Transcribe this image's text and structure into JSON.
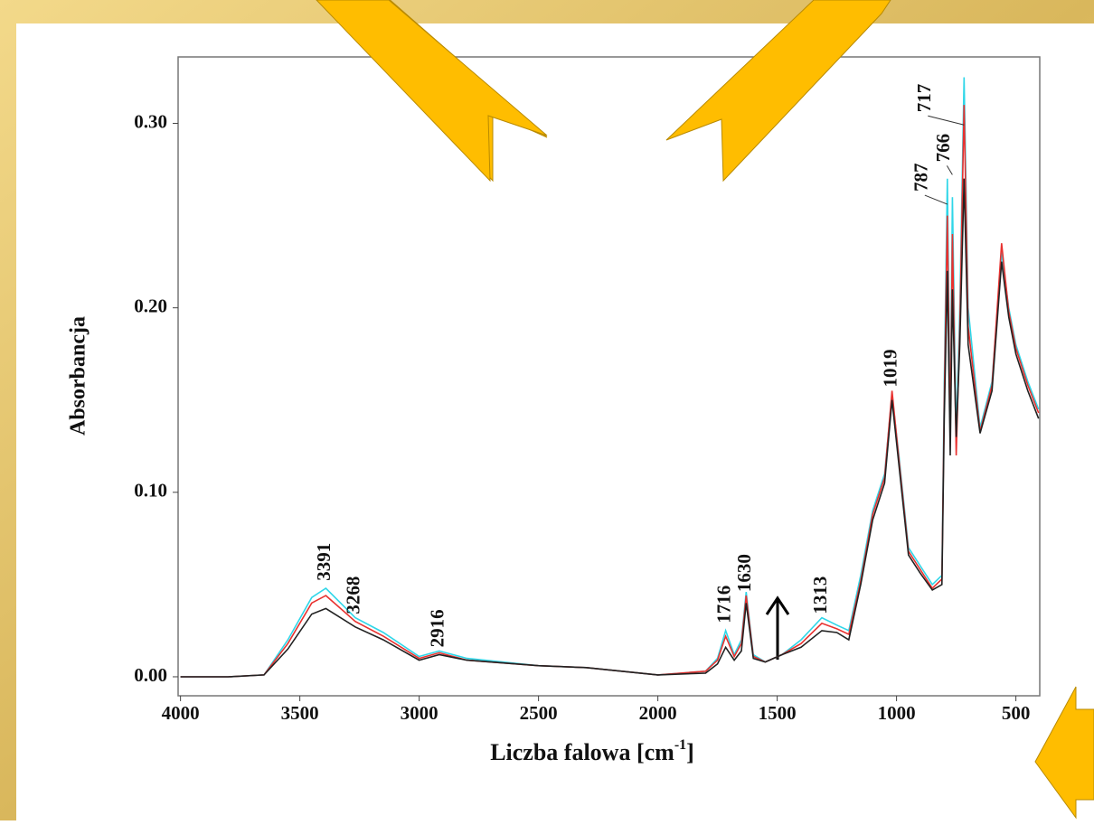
{
  "chart_data": {
    "type": "line",
    "ylabel": "Absorbancja",
    "xlabel_parts": [
      "Liczba falowa [cm",
      "-1",
      "]"
    ],
    "xlim": [
      4010,
      400
    ],
    "xticks": [
      4000,
      3500,
      3000,
      2500,
      2000,
      1500,
      1000,
      500
    ],
    "ylim": [
      -0.0103,
      0.336
    ],
    "yticks": [
      {
        "value": 0,
        "label": "0.00"
      },
      {
        "value": 0.1,
        "label": "0.10"
      },
      {
        "value": 0.2,
        "label": "0.20"
      },
      {
        "value": 0.3,
        "label": "0.30"
      }
    ],
    "x": [
      4000,
      3800,
      3650,
      3550,
      3450,
      3391,
      3268,
      3150,
      3000,
      2916,
      2800,
      2500,
      2300,
      2000,
      1800,
      1750,
      1716,
      1680,
      1650,
      1630,
      1600,
      1550,
      1480,
      1400,
      1313,
      1250,
      1200,
      1150,
      1100,
      1050,
      1019,
      990,
      950,
      900,
      850,
      810,
      800,
      787,
      775,
      766,
      750,
      735,
      717,
      700,
      650,
      600,
      560,
      530,
      500,
      450,
      405
    ],
    "series": [
      {
        "color": "#2fd6e8",
        "values": [
          0,
          0,
          0.001,
          0.02,
          0.043,
          0.048,
          0.032,
          0.024,
          0.011,
          0.014,
          0.01,
          0.006,
          0.005,
          0.001,
          0.003,
          0.01,
          0.025,
          0.012,
          0.02,
          0.046,
          0.012,
          0.008,
          0.012,
          0.02,
          0.032,
          0.028,
          0.025,
          0.055,
          0.09,
          0.11,
          0.153,
          0.12,
          0.07,
          0.06,
          0.05,
          0.055,
          0.16,
          0.27,
          0.14,
          0.26,
          0.13,
          0.2,
          0.325,
          0.2,
          0.135,
          0.16,
          0.23,
          0.2,
          0.18,
          0.16,
          0.145
        ]
      },
      {
        "color": "#e8312f",
        "values": [
          0,
          0,
          0.001,
          0.018,
          0.04,
          0.044,
          0.03,
          0.022,
          0.01,
          0.013,
          0.009,
          0.006,
          0.005,
          0.001,
          0.003,
          0.009,
          0.022,
          0.011,
          0.018,
          0.044,
          0.011,
          0.008,
          0.012,
          0.018,
          0.029,
          0.026,
          0.023,
          0.052,
          0.088,
          0.108,
          0.155,
          0.118,
          0.068,
          0.058,
          0.048,
          0.053,
          0.15,
          0.25,
          0.13,
          0.24,
          0.12,
          0.19,
          0.31,
          0.19,
          0.133,
          0.158,
          0.235,
          0.198,
          0.178,
          0.158,
          0.143
        ]
      },
      {
        "color": "#222222",
        "values": [
          0,
          0,
          0.001,
          0.015,
          0.034,
          0.037,
          0.027,
          0.02,
          0.009,
          0.012,
          0.009,
          0.006,
          0.005,
          0.001,
          0.002,
          0.007,
          0.016,
          0.009,
          0.014,
          0.04,
          0.01,
          0.008,
          0.012,
          0.016,
          0.025,
          0.024,
          0.02,
          0.05,
          0.085,
          0.105,
          0.15,
          0.115,
          0.066,
          0.056,
          0.047,
          0.05,
          0.14,
          0.22,
          0.12,
          0.21,
          0.13,
          0.18,
          0.27,
          0.18,
          0.132,
          0.155,
          0.225,
          0.195,
          0.175,
          0.155,
          0.14
        ]
      }
    ],
    "annotations": [
      {
        "text": "3391",
        "x": 3391,
        "y": 0.052
      },
      {
        "text": "3268",
        "x": 3268,
        "y": 0.034
      },
      {
        "text": "2916",
        "x": 2916,
        "y": 0.016
      },
      {
        "text": "1716",
        "x": 1716,
        "y": 0.029
      },
      {
        "text": "1630",
        "x": 1630,
        "y": 0.046
      },
      {
        "text": "1313",
        "x": 1313,
        "y": 0.034
      },
      {
        "text": "1019",
        "x": 1019,
        "y": 0.157
      },
      {
        "text": "787",
        "x": 787,
        "y": 0.263
      },
      {
        "text": "766",
        "x": 766,
        "y": 0.279
      },
      {
        "text": "717",
        "x": 717,
        "y": 0.306
      }
    ]
  }
}
